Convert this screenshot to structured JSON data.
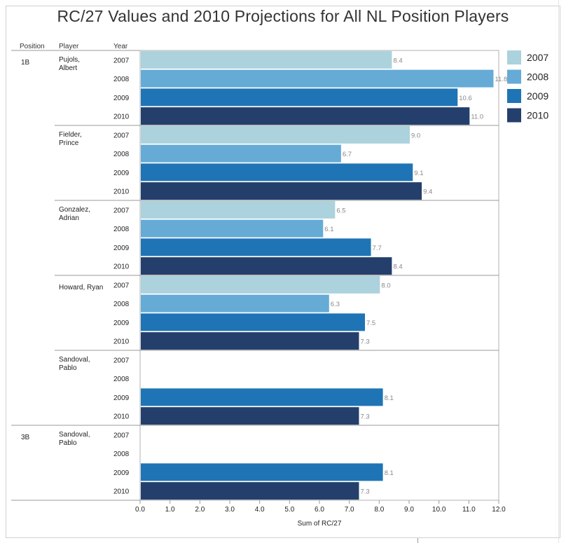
{
  "chart_data": {
    "type": "bar",
    "orientation": "horizontal",
    "title": "RC/27 Values and 2010 Projections for All NL Position Players",
    "column_headers": [
      "Position",
      "Player",
      "Year"
    ],
    "xlabel": "Sum of RC/27",
    "xlim": [
      0,
      12
    ],
    "xticks": [
      "0.0",
      "1.0",
      "2.0",
      "3.0",
      "4.0",
      "5.0",
      "6.0",
      "7.0",
      "8.0",
      "9.0",
      "10.0",
      "11.0",
      "12.0"
    ],
    "series": [
      {
        "name": "2007",
        "color": "#abd2dd"
      },
      {
        "name": "2008",
        "color": "#65abd6"
      },
      {
        "name": "2009",
        "color": "#1f74b5"
      },
      {
        "name": "2010",
        "color": "#243f6b"
      }
    ],
    "groups": [
      {
        "position": "1B",
        "player": "Pujols, Albert",
        "rows": [
          {
            "year": "2007",
            "value": 8.4,
            "label": "8.4"
          },
          {
            "year": "2008",
            "value": 11.8,
            "label": "11.8"
          },
          {
            "year": "2009",
            "value": 10.6,
            "label": "10.6"
          },
          {
            "year": "2010",
            "value": 11.0,
            "label": "11.0"
          }
        ]
      },
      {
        "position": "",
        "player": "Fielder, Prince",
        "rows": [
          {
            "year": "2007",
            "value": 9.0,
            "label": "9.0"
          },
          {
            "year": "2008",
            "value": 6.7,
            "label": "6.7"
          },
          {
            "year": "2009",
            "value": 9.1,
            "label": "9.1"
          },
          {
            "year": "2010",
            "value": 9.4,
            "label": "9.4"
          }
        ]
      },
      {
        "position": "",
        "player": "Gonzalez, Adrian",
        "rows": [
          {
            "year": "2007",
            "value": 6.5,
            "label": "6.5"
          },
          {
            "year": "2008",
            "value": 6.1,
            "label": "6.1"
          },
          {
            "year": "2009",
            "value": 7.7,
            "label": "7.7"
          },
          {
            "year": "2010",
            "value": 8.4,
            "label": "8.4"
          }
        ]
      },
      {
        "position": "",
        "player": "Howard, Ryan",
        "rows": [
          {
            "year": "2007",
            "value": 8.0,
            "label": "8.0"
          },
          {
            "year": "2008",
            "value": 6.3,
            "label": "6.3"
          },
          {
            "year": "2009",
            "value": 7.5,
            "label": "7.5"
          },
          {
            "year": "2010",
            "value": 7.3,
            "label": "7.3"
          }
        ]
      },
      {
        "position": "",
        "player": "Sandoval, Pablo",
        "rows": [
          {
            "year": "2007",
            "value": null,
            "label": ""
          },
          {
            "year": "2008",
            "value": null,
            "label": ""
          },
          {
            "year": "2009",
            "value": 8.1,
            "label": "8.1"
          },
          {
            "year": "2010",
            "value": 7.3,
            "label": "7.3"
          }
        ]
      },
      {
        "position": "3B",
        "player": "Sandoval, Pablo",
        "rows": [
          {
            "year": "2007",
            "value": null,
            "label": ""
          },
          {
            "year": "2008",
            "value": null,
            "label": ""
          },
          {
            "year": "2009",
            "value": 8.1,
            "label": "8.1"
          },
          {
            "year": "2010",
            "value": 7.3,
            "label": "7.3"
          }
        ]
      }
    ],
    "legend_position": "right",
    "grid": false
  }
}
